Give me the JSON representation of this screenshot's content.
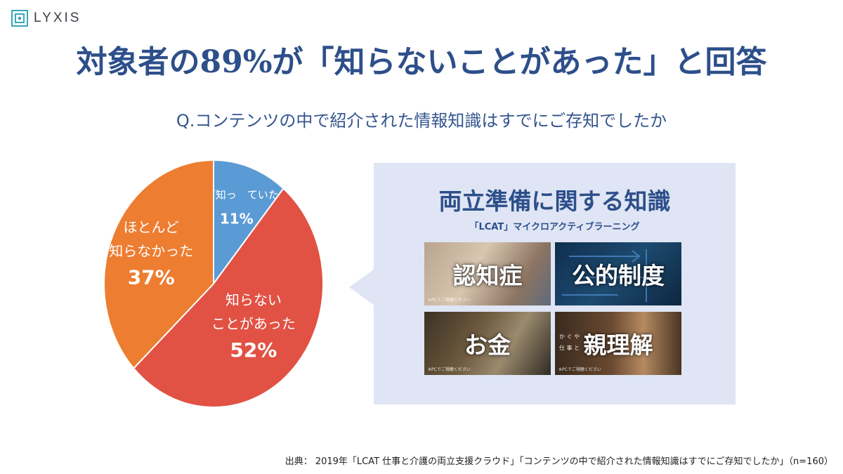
{
  "brand": {
    "logo_text": "LYXIS"
  },
  "title": "対象者の89%が「知らないことがあった」と回答",
  "question": "Q.コンテンツの中で紹介された情報知識はすでにご存知でしたか",
  "chart_data": {
    "type": "pie",
    "slices": [
      {
        "label": "ほぼ知っていた",
        "label_lines": [
          "ほぼ知っ　ていた"
        ],
        "value": 11,
        "value_text": "11%",
        "color": "#5b9bd5"
      },
      {
        "label": "知らないことがあった",
        "label_lines": [
          "知らない",
          "ことがあった"
        ],
        "value": 52,
        "value_text": "52%",
        "color": "#e15244"
      },
      {
        "label": "ほとんど知らなかった",
        "label_lines": [
          "ほとんど",
          "知らなかった"
        ],
        "value": 37,
        "value_text": "37%",
        "color": "#ed7d31"
      }
    ],
    "start": "12 o'clock",
    "direction": "clockwise"
  },
  "panel": {
    "title": "両立準備に関する知識",
    "subtitle": "「LCAT」マイクロアクティブラーニング",
    "tiles": [
      {
        "label": "認知症",
        "note": "※PCでご視聴ください"
      },
      {
        "label": "公的制度",
        "note": ""
      },
      {
        "label": "お金",
        "note": "※PCでご視聴ください"
      },
      {
        "label": "親理解",
        "note": "※PCでご視聴ください",
        "kana_1": "か ぐ や",
        "kana_2": "仕 事 と"
      }
    ],
    "background": "#dfe5f4"
  },
  "source": "出典： 2019年「LCAT 仕事と介護の両立支援クラウド」「コンテンツの中で紹介された情報知識はすでにご存知でしたか」（n=160）"
}
